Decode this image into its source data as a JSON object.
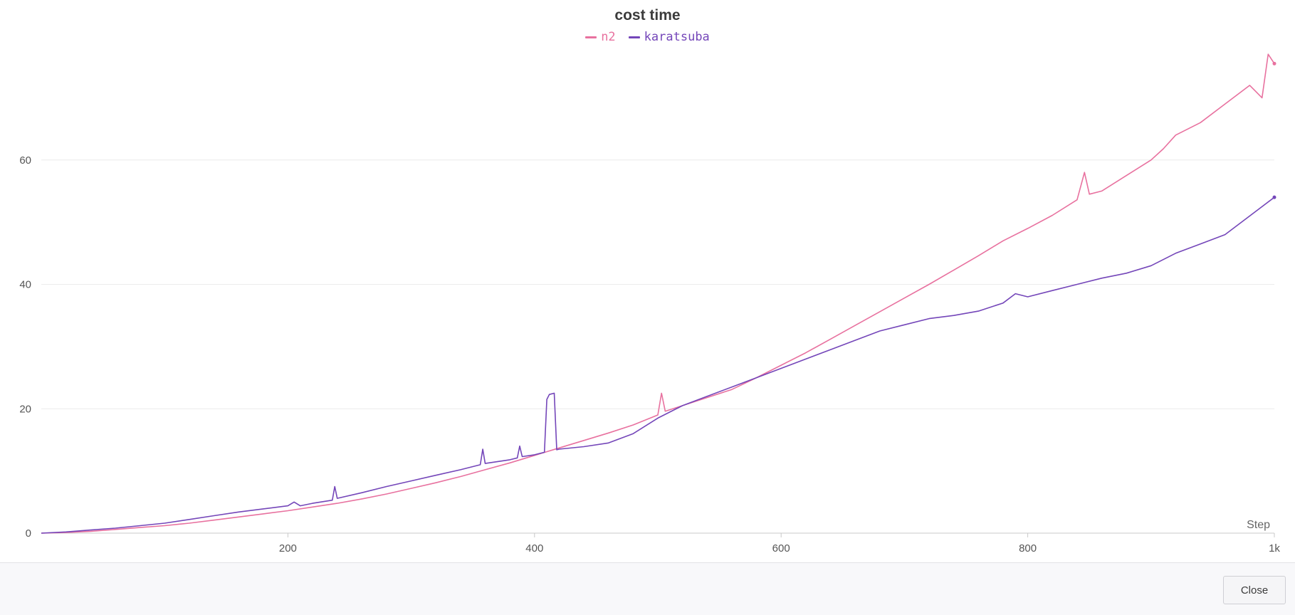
{
  "chart_data": {
    "type": "line",
    "title": "cost time",
    "xlabel": "Step",
    "ylabel": "",
    "xlim": [
      0,
      1000
    ],
    "ylim": [
      0,
      80
    ],
    "xticks": [
      200,
      400,
      600,
      800,
      1000
    ],
    "xtick_labels": [
      "200",
      "400",
      "600",
      "800",
      "1k"
    ],
    "yticks": [
      0,
      20,
      40,
      60
    ],
    "grid": true,
    "legend_position": "top-center",
    "series": [
      {
        "name": "n2",
        "color": "#e8719f",
        "x": [
          0,
          20,
          40,
          60,
          80,
          100,
          120,
          140,
          160,
          180,
          200,
          220,
          240,
          260,
          280,
          300,
          320,
          340,
          360,
          380,
          400,
          420,
          440,
          460,
          480,
          500,
          503,
          506,
          520,
          540,
          560,
          580,
          600,
          620,
          640,
          660,
          680,
          700,
          720,
          740,
          760,
          780,
          800,
          820,
          840,
          846,
          850,
          860,
          880,
          900,
          910,
          920,
          940,
          960,
          980,
          990,
          995,
          1000
        ],
        "y": [
          0,
          0.1,
          0.3,
          0.6,
          0.9,
          1.2,
          1.6,
          2.1,
          2.6,
          3.1,
          3.6,
          4.2,
          4.8,
          5.5,
          6.3,
          7.2,
          8.1,
          9.1,
          10.2,
          11.3,
          12.5,
          13.7,
          14.9,
          16.1,
          17.4,
          19.0,
          22.5,
          19.6,
          20.5,
          21.8,
          23.1,
          25.0,
          27.0,
          29.0,
          31.2,
          33.4,
          35.6,
          37.8,
          40.0,
          42.3,
          44.6,
          47.0,
          49.0,
          51.1,
          53.6,
          58.0,
          54.5,
          55.0,
          57.5,
          60.0,
          61.8,
          64.0,
          66.0,
          69.0,
          72.0,
          70.0,
          77.0,
          75.5
        ]
      },
      {
        "name": "karatsuba",
        "color": "#7446b9",
        "x": [
          0,
          20,
          40,
          60,
          80,
          100,
          120,
          140,
          160,
          180,
          200,
          205,
          210,
          220,
          236,
          238,
          240,
          260,
          280,
          300,
          320,
          340,
          356,
          358,
          360,
          380,
          386,
          388,
          390,
          400,
          408,
          410,
          412,
          416,
          418,
          420,
          440,
          460,
          480,
          500,
          520,
          540,
          560,
          580,
          600,
          620,
          640,
          660,
          680,
          700,
          720,
          740,
          760,
          780,
          790,
          800,
          820,
          840,
          860,
          880,
          900,
          920,
          940,
          960,
          980,
          1000
        ],
        "y": [
          0,
          0.2,
          0.5,
          0.8,
          1.2,
          1.6,
          2.2,
          2.8,
          3.4,
          3.9,
          4.4,
          5.0,
          4.4,
          4.8,
          5.3,
          7.5,
          5.6,
          6.5,
          7.5,
          8.4,
          9.3,
          10.2,
          11.0,
          13.5,
          11.2,
          11.8,
          12.1,
          14.0,
          12.3,
          12.6,
          13.0,
          21.5,
          22.3,
          22.5,
          13.4,
          13.5,
          13.9,
          14.5,
          16.0,
          18.5,
          20.5,
          22.0,
          23.5,
          25.0,
          26.5,
          28.0,
          29.5,
          31.0,
          32.5,
          33.5,
          34.5,
          35.0,
          35.7,
          37.0,
          38.5,
          38.0,
          39.0,
          40.0,
          41.0,
          41.8,
          43.0,
          45.0,
          46.5,
          48.0,
          51.0,
          54.0
        ]
      }
    ]
  },
  "footer": {
    "close_label": "Close"
  }
}
